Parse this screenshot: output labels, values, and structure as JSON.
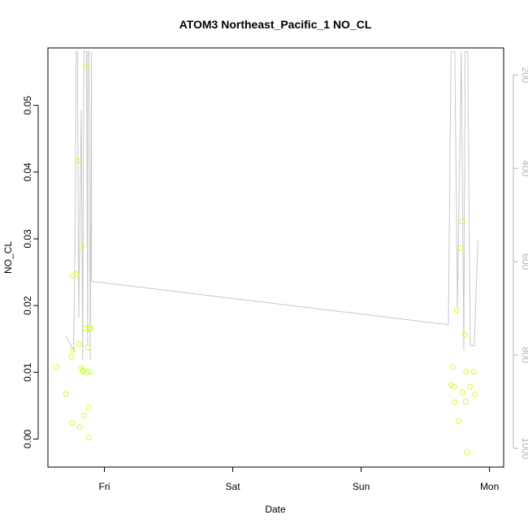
{
  "chart_data": {
    "type": "scatter",
    "title": "ATOM3 Northeast_Pacific_1 NO_CL",
    "xlabel": "Date",
    "ylabel": "NO_CL",
    "x_ticks": [
      "Fri",
      "Sat",
      "Sun",
      "Mon"
    ],
    "x_tick_days": [
      1,
      2,
      3,
      4
    ],
    "xlim_days": [
      0.56,
      4.11
    ],
    "ylim": [
      -0.0042,
      0.0586
    ],
    "y_ticks": [
      0.0,
      0.01,
      0.02,
      0.03,
      0.04,
      0.05
    ],
    "y_tick_labels": [
      "0.00",
      "0.01",
      "0.02",
      "0.03",
      "0.04",
      "0.05"
    ],
    "y2_ticks": [
      200,
      400,
      600,
      800,
      1000
    ],
    "y2_tick_labels": [
      "200",
      "400",
      "600",
      "800",
      "1000"
    ],
    "y2lim_reversed": [
      1040,
      142
    ],
    "grid": false,
    "colors": {
      "points": "#ccff33",
      "line": "#c8c8c8",
      "right_axis": "#b3b3b3"
    },
    "series": [
      {
        "kind": "points",
        "x_days": [
          0.627,
          0.699,
          0.743,
          0.748,
          0.752,
          0.755,
          0.783,
          0.792,
          0.8,
          0.808,
          0.818,
          0.823,
          0.83,
          0.836,
          0.84,
          0.85,
          0.86,
          0.866,
          0.872,
          0.876,
          0.879,
          0.885,
          0.887,
          0.893,
          3.702,
          3.715,
          3.722,
          3.727,
          3.745,
          3.758,
          3.772,
          3.785,
          3.79,
          3.808,
          3.815,
          3.818,
          3.825,
          3.848,
          3.877,
          3.888
        ],
        "values": [
          0.0108,
          0.0067,
          0.0123,
          0.0024,
          0.0245,
          0.0133,
          0.0247,
          0.0417,
          0.0142,
          0.0018,
          0.0106,
          0.0289,
          0.0103,
          0.0101,
          0.0035,
          0.0166,
          0.0559,
          0.01,
          0.0137,
          0.0047,
          0.0002,
          0.0165,
          0.0101,
          0.0166,
          0.0081,
          0.0108,
          0.0078,
          0.0055,
          0.0193,
          0.0027,
          0.0286,
          0.0326,
          0.007,
          0.0156,
          0.0056,
          0.0101,
          -0.002,
          0.0078,
          0.0101,
          0.0067
        ]
      },
      {
        "kind": "line",
        "axis": "right",
        "x_days": [
          0.7,
          0.76,
          0.77,
          0.78,
          0.79,
          0.8,
          0.82,
          0.83,
          0.84,
          0.85,
          0.86,
          0.87,
          0.87,
          0.88,
          0.89,
          0.9,
          0.9,
          3.68,
          3.7,
          3.73,
          3.75,
          3.78,
          3.8,
          3.81,
          3.83,
          3.85,
          3.88,
          3.91
        ],
        "values": [
          760,
          790,
          580,
          150,
          150,
          720,
          275,
          810,
          150,
          150,
          150,
          780,
          150,
          150,
          810,
          150,
          642,
          735,
          150,
          150,
          700,
          150,
          790,
          150,
          150,
          780,
          780,
          555
        ]
      }
    ]
  }
}
